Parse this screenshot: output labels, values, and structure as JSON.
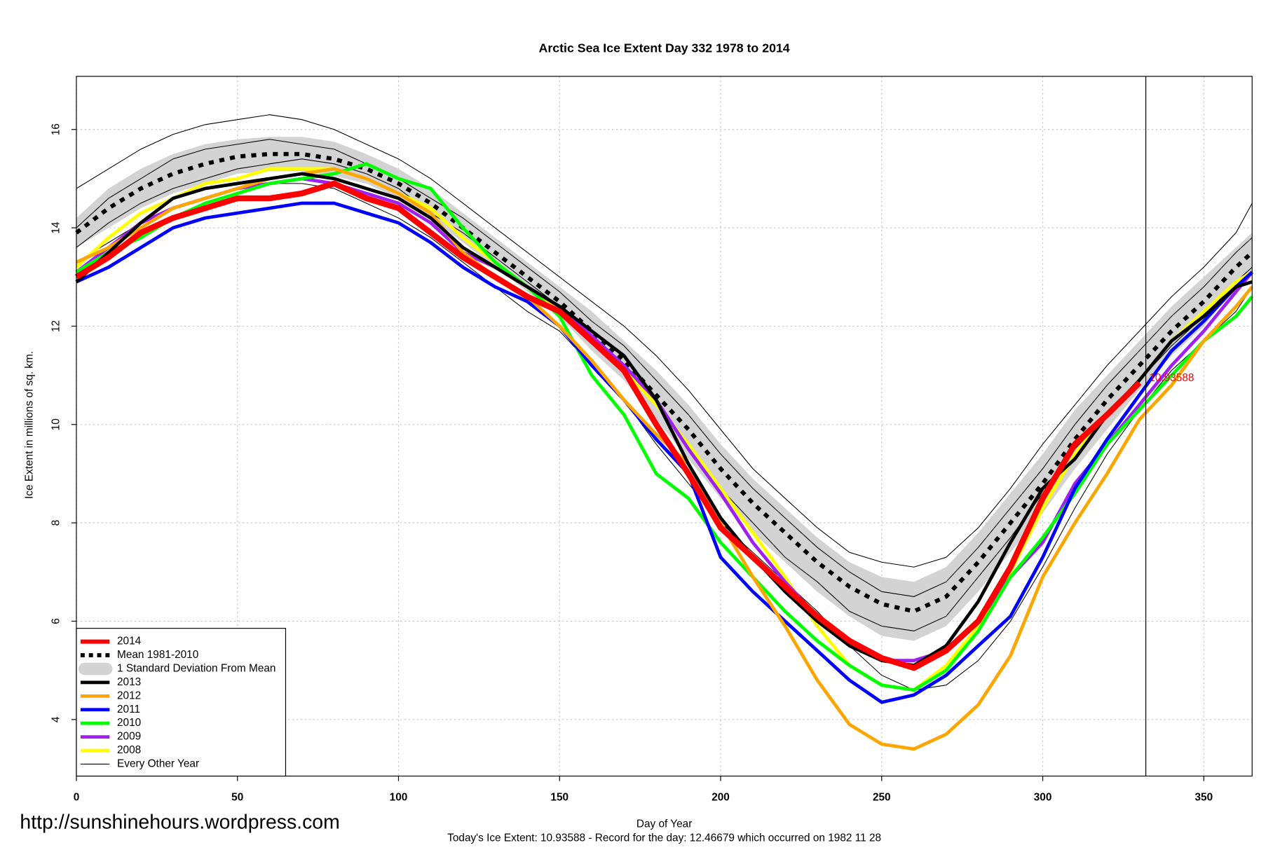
{
  "chart_data": {
    "type": "line",
    "title": "Arctic Sea Ice Extent Day 332 1978 to 2014",
    "x_label": "Day of Year",
    "y_label": "Ice Extent in millions of sq. km.",
    "footer": "Today's Ice Extent: 10.93588  - Record for the day: 12.46679 which occurred on 1982 11 28",
    "source_url": "http://sunshinehours.wordpress.com",
    "annotation_value": 10.93588,
    "vline": 332,
    "xlim": [
      0,
      365
    ],
    "ylim": [
      2.85,
      17.08
    ],
    "xticks": [
      0,
      50,
      100,
      150,
      200,
      250,
      300,
      350
    ],
    "yticks": [
      4,
      6,
      8,
      10,
      12,
      14,
      16
    ],
    "grid": true,
    "legend": "bottom-left",
    "x": [
      0,
      10,
      20,
      30,
      40,
      50,
      60,
      70,
      80,
      90,
      100,
      110,
      120,
      130,
      140,
      150,
      160,
      170,
      180,
      190,
      200,
      210,
      220,
      230,
      240,
      250,
      260,
      270,
      280,
      290,
      300,
      310,
      320,
      330,
      340,
      350,
      360,
      365
    ],
    "series": [
      {
        "name": "2014",
        "color": "#ff0000",
        "style": "thick",
        "values": [
          13.0,
          13.4,
          13.9,
          14.2,
          14.4,
          14.6,
          14.6,
          14.7,
          14.9,
          14.6,
          14.4,
          13.9,
          13.4,
          13.0,
          12.6,
          12.3,
          11.7,
          11.1,
          10.0,
          9.0,
          7.9,
          7.3,
          6.7,
          6.1,
          5.6,
          5.25,
          5.05,
          5.4,
          6.0,
          7.1,
          8.5,
          9.6,
          10.2,
          10.85,
          null,
          null,
          null,
          null
        ]
      },
      {
        "name": "Mean 1981-2010",
        "color": "#000000",
        "style": "dashed",
        "values": [
          13.9,
          14.4,
          14.8,
          15.1,
          15.3,
          15.45,
          15.5,
          15.5,
          15.4,
          15.2,
          14.9,
          14.5,
          14.0,
          13.5,
          13.0,
          12.5,
          11.9,
          11.3,
          10.6,
          9.9,
          9.1,
          8.4,
          7.8,
          7.2,
          6.7,
          6.35,
          6.2,
          6.5,
          7.2,
          8.0,
          8.8,
          9.7,
          10.5,
          11.2,
          11.9,
          12.5,
          13.2,
          13.5
        ]
      },
      {
        "name": "1 Standard Deviation From Mean",
        "color": "#d3d3d3",
        "style": "band",
        "upper": [
          14.2,
          14.8,
          15.2,
          15.5,
          15.7,
          15.8,
          15.85,
          15.85,
          15.75,
          15.5,
          15.2,
          14.8,
          14.3,
          13.8,
          13.3,
          12.8,
          12.3,
          11.7,
          11.1,
          10.4,
          9.6,
          8.9,
          8.3,
          7.7,
          7.2,
          6.9,
          6.8,
          7.1,
          7.8,
          8.6,
          9.4,
          10.3,
          11.0,
          11.7,
          12.4,
          13.0,
          13.6,
          13.9
        ],
        "lower": [
          13.6,
          14.0,
          14.4,
          14.7,
          14.9,
          15.1,
          15.15,
          15.15,
          15.05,
          14.9,
          14.6,
          14.2,
          13.7,
          13.2,
          12.7,
          12.2,
          11.5,
          10.9,
          10.1,
          9.3,
          8.5,
          7.8,
          7.2,
          6.6,
          6.1,
          5.7,
          5.6,
          5.9,
          6.6,
          7.4,
          8.2,
          9.1,
          9.9,
          10.7,
          11.4,
          12.0,
          12.8,
          13.1
        ]
      },
      {
        "name": "2013",
        "color": "#000000",
        "style": "medium",
        "values": [
          12.9,
          13.5,
          14.1,
          14.6,
          14.8,
          14.9,
          15.0,
          15.1,
          15.0,
          14.8,
          14.6,
          14.2,
          13.6,
          13.2,
          12.8,
          12.4,
          11.9,
          11.4,
          10.5,
          9.2,
          8.1,
          7.3,
          6.6,
          6.0,
          5.5,
          5.2,
          5.1,
          5.5,
          6.4,
          7.6,
          8.7,
          9.3,
          10.2,
          10.9,
          11.7,
          12.2,
          12.8,
          12.9
        ]
      },
      {
        "name": "2012",
        "color": "#ffa500",
        "style": "medium",
        "values": [
          13.3,
          13.6,
          14.0,
          14.4,
          14.6,
          14.8,
          15.0,
          15.1,
          15.2,
          15.0,
          14.7,
          14.3,
          13.5,
          13.0,
          12.6,
          12.0,
          11.3,
          10.5,
          9.8,
          9.2,
          8.0,
          6.9,
          5.9,
          4.8,
          3.9,
          3.5,
          3.4,
          3.7,
          4.3,
          5.3,
          6.9,
          8.0,
          9.0,
          10.1,
          10.8,
          11.7,
          12.4,
          12.8
        ]
      },
      {
        "name": "2011",
        "color": "#0000ff",
        "style": "medium",
        "values": [
          12.9,
          13.2,
          13.6,
          14.0,
          14.2,
          14.3,
          14.4,
          14.5,
          14.5,
          14.3,
          14.1,
          13.7,
          13.2,
          12.8,
          12.5,
          12.0,
          11.2,
          10.5,
          9.7,
          9.0,
          7.3,
          6.6,
          6.0,
          5.4,
          4.8,
          4.35,
          4.5,
          4.9,
          5.5,
          6.1,
          7.3,
          8.7,
          9.7,
          10.6,
          11.5,
          12.1,
          12.8,
          13.1
        ]
      },
      {
        "name": "2010",
        "color": "#00ff00",
        "style": "medium",
        "values": [
          13.1,
          13.5,
          13.8,
          14.2,
          14.5,
          14.7,
          14.9,
          15.0,
          15.1,
          15.3,
          15.0,
          14.8,
          14.0,
          13.3,
          12.8,
          12.2,
          11.0,
          10.2,
          9.0,
          8.5,
          7.6,
          6.9,
          6.2,
          5.6,
          5.1,
          4.7,
          4.6,
          5.0,
          5.8,
          6.9,
          7.7,
          8.6,
          9.6,
          10.3,
          11.0,
          11.7,
          12.2,
          12.6
        ]
      },
      {
        "name": "2009",
        "color": "#a020f0",
        "style": "medium",
        "values": [
          13.1,
          13.6,
          14.1,
          14.4,
          14.6,
          14.8,
          14.9,
          15.0,
          14.9,
          14.7,
          14.5,
          14.1,
          13.5,
          13.2,
          12.8,
          12.4,
          11.8,
          11.2,
          10.5,
          9.5,
          8.6,
          7.6,
          6.8,
          6.1,
          5.5,
          5.2,
          5.2,
          5.4,
          6.0,
          6.9,
          7.6,
          8.8,
          9.6,
          10.4,
          11.2,
          11.9,
          12.7,
          13.1
        ]
      },
      {
        "name": "2008",
        "color": "#ffff00",
        "style": "medium",
        "values": [
          13.2,
          13.8,
          14.3,
          14.6,
          14.9,
          15.0,
          15.2,
          15.2,
          15.2,
          15.0,
          14.7,
          14.4,
          13.8,
          13.3,
          12.8,
          12.3,
          11.8,
          11.1,
          10.4,
          9.6,
          8.7,
          7.8,
          6.9,
          5.9,
          5.1,
          4.7,
          4.6,
          5.1,
          5.9,
          7.0,
          8.3,
          9.4,
          10.2,
          10.9,
          11.7,
          12.3,
          12.9,
          13.1
        ]
      },
      {
        "name": "Every Other Year",
        "color": "#000000",
        "style": "thin",
        "lines": [
          [
            14.8,
            15.2,
            15.6,
            15.9,
            16.1,
            16.2,
            16.3,
            16.2,
            16.0,
            15.7,
            15.4,
            15.0,
            14.5,
            14.0,
            13.5,
            13.0,
            12.5,
            12.0,
            11.4,
            10.7,
            9.9,
            9.1,
            8.5,
            7.9,
            7.4,
            7.2,
            7.1,
            7.3,
            7.9,
            8.7,
            9.6,
            10.4,
            11.2,
            11.9,
            12.6,
            13.2,
            13.9,
            14.5
          ],
          [
            13.3,
            13.7,
            14.1,
            14.4,
            14.6,
            14.8,
            14.9,
            14.9,
            14.8,
            14.5,
            14.2,
            13.8,
            13.3,
            12.8,
            12.3,
            11.9,
            11.2,
            10.5,
            9.6,
            8.8,
            8.0,
            7.4,
            6.8,
            6.2,
            5.5,
            4.9,
            4.6,
            4.7,
            5.2,
            6.0,
            7.1,
            8.3,
            9.4,
            10.3,
            11.1,
            11.7,
            12.3,
            12.8
          ],
          [
            14.0,
            14.6,
            15.0,
            15.4,
            15.6,
            15.7,
            15.8,
            15.7,
            15.6,
            15.3,
            15.0,
            14.6,
            14.2,
            13.7,
            13.2,
            12.7,
            12.1,
            11.6,
            10.9,
            10.2,
            9.4,
            8.7,
            8.1,
            7.5,
            7.0,
            6.6,
            6.5,
            6.8,
            7.5,
            8.3,
            9.1,
            10.0,
            10.8,
            11.5,
            12.2,
            12.8,
            13.5,
            13.8
          ],
          [
            13.6,
            14.1,
            14.5,
            14.8,
            15.0,
            15.2,
            15.3,
            15.4,
            15.3,
            15.1,
            14.8,
            14.3,
            13.9,
            13.4,
            12.9,
            12.4,
            11.8,
            11.2,
            10.4,
            9.6,
            8.7,
            8.0,
            7.3,
            6.8,
            6.2,
            5.9,
            5.8,
            6.1,
            6.9,
            7.7,
            8.6,
            9.5,
            10.2,
            10.9,
            11.6,
            12.2,
            12.9,
            13.2
          ]
        ]
      }
    ]
  }
}
